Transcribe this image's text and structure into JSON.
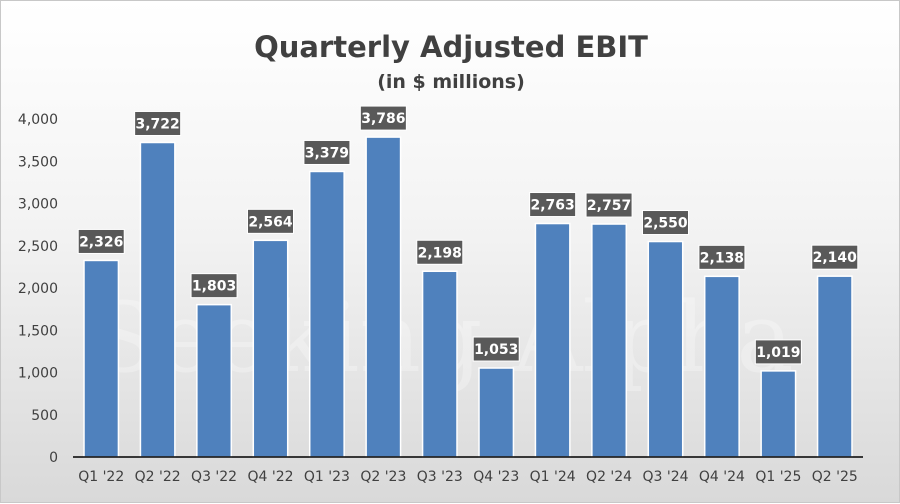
{
  "chart_data": {
    "type": "bar",
    "title": "Quarterly Adjusted EBIT",
    "subtitle": "(in $ millions)",
    "xlabel": "",
    "ylabel": "",
    "categories": [
      "Q1 '22",
      "Q2 '22",
      "Q3 '22",
      "Q4 '22",
      "Q1 '23",
      "Q2 '23",
      "Q3 '23",
      "Q4 '23",
      "Q1 '24",
      "Q2 '24",
      "Q3 '24",
      "Q4 '24",
      "Q1 '25",
      "Q2 '25"
    ],
    "values": [
      2326,
      3722,
      1803,
      2564,
      3379,
      3786,
      2198,
      1053,
      2763,
      2757,
      2550,
      2138,
      1019,
      2140
    ],
    "data_labels": [
      "2,326",
      "3,722",
      "1,803",
      "2,564",
      "3,379",
      "3,786",
      "2,198",
      "1,053",
      "2,763",
      "2,757",
      "2,550",
      "2,138",
      "1,019",
      "2,140"
    ],
    "ylim": [
      0,
      4000
    ],
    "yticks": [
      0,
      500,
      1000,
      1500,
      2000,
      2500,
      3000,
      3500,
      4000
    ],
    "ytick_labels": [
      "0",
      "500",
      "1,000",
      "1,500",
      "2,000",
      "2,500",
      "3,000",
      "3,500",
      "4,000"
    ],
    "grid": false,
    "legend": "none",
    "bar_color": "#4f81bd",
    "label_box_color": "#595959"
  },
  "watermark": "Seeking Alpha"
}
